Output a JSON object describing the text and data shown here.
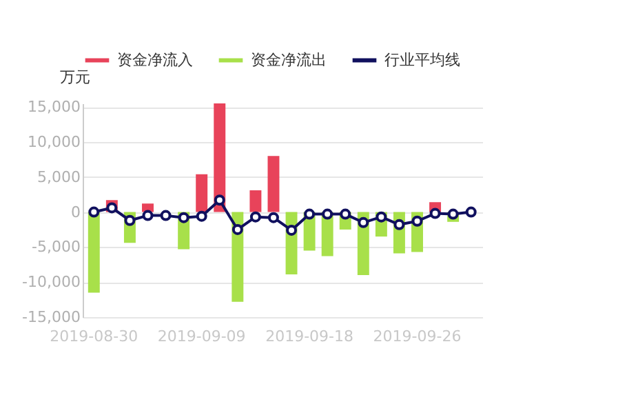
{
  "chart_data": {
    "type": "bar",
    "ylabel": "万元",
    "categories": [
      "2019-08-30",
      null,
      null,
      null,
      null,
      null,
      "2019-09-09",
      null,
      null,
      null,
      null,
      null,
      "2019-09-18",
      null,
      null,
      null,
      null,
      null,
      "2019-09-26",
      null,
      null,
      null
    ],
    "series": [
      {
        "name": "资金净流入",
        "color": "#e8435a",
        "values": [
          null,
          1700,
          null,
          1200,
          0,
          null,
          5400,
          15500,
          null,
          3100,
          8000,
          null,
          null,
          null,
          null,
          null,
          null,
          null,
          null,
          1400,
          null,
          0
        ]
      },
      {
        "name": "资金净流出",
        "color": "#a8e04a",
        "values": [
          -11500,
          null,
          -4400,
          null,
          null,
          -5300,
          null,
          null,
          -12800,
          null,
          null,
          -8900,
          -5500,
          -6300,
          -2500,
          -9000,
          -3500,
          -5900,
          -5700,
          null,
          -1400,
          null
        ]
      },
      {
        "name": "行业平均线",
        "type": "line",
        "color": "#10105e",
        "marker": "circle",
        "values": [
          0,
          600,
          -1200,
          -500,
          -500,
          -800,
          -600,
          1700,
          -2500,
          -700,
          -800,
          -2600,
          -300,
          -300,
          -300,
          -1500,
          -700,
          -1800,
          -1300,
          -200,
          -300,
          0
        ]
      }
    ],
    "ylim": [
      -15000,
      15500
    ],
    "yticks": [
      {
        "value": -15000,
        "label": "-15,000"
      },
      {
        "value": -10000,
        "label": "-10,000"
      },
      {
        "value": -5000,
        "label": "-5,000"
      },
      0,
      {
        "value": 5000,
        "label": "5,000"
      },
      {
        "value": 10000,
        "label": "10,000"
      },
      {
        "value": 15000,
        "label": "15,000"
      }
    ],
    "grid": "y",
    "legend": "top right"
  }
}
